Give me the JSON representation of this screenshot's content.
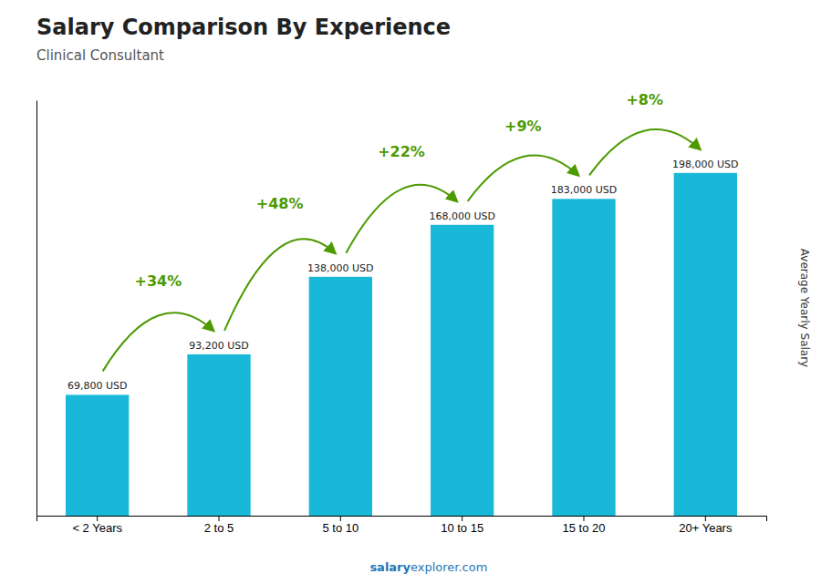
{
  "chart_data": {
    "type": "bar",
    "title": "Salary Comparison By Experience",
    "subtitle": "Clinical Consultant",
    "ylabel": "Average Yearly Salary",
    "categories": [
      "< 2 Years",
      "2 to 5",
      "5 to 10",
      "10 to 15",
      "15 to 20",
      "20+ Years"
    ],
    "values": [
      69800,
      93200,
      138000,
      168000,
      183000,
      198000
    ],
    "value_labels": [
      "69,800 USD",
      "93,200 USD",
      "138,000 USD",
      "168,000 USD",
      "183,000 USD",
      "198,000 USD"
    ],
    "data_labels": true,
    "annotations": [
      "+34%",
      "+48%",
      "+22%",
      "+9%",
      "+8%"
    ],
    "footer": [
      "salary",
      "explorer.com"
    ],
    "color": "#1ab8d8",
    "ylim": [
      0,
      240000
    ],
    "tick_labels": "x",
    "grid": false
  }
}
